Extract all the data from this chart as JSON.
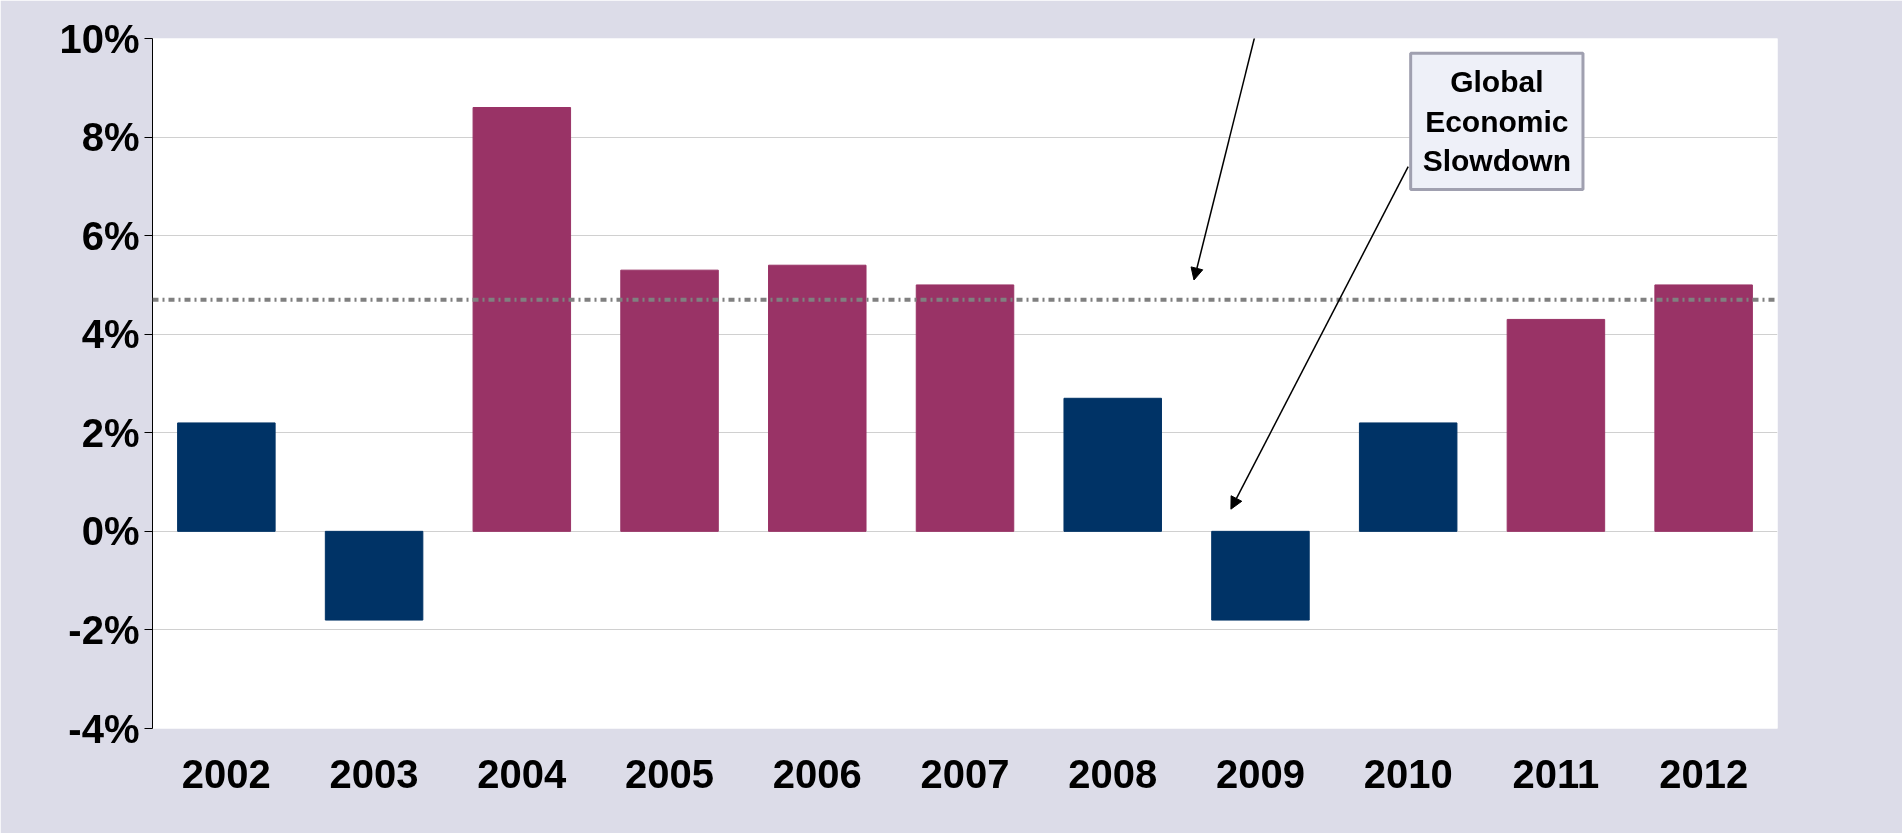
{
  "chart_data": {
    "type": "bar",
    "categories": [
      "2002",
      "2003",
      "2004",
      "2005",
      "2006",
      "2007",
      "2008",
      "2009",
      "2010",
      "2011",
      "2012"
    ],
    "values": [
      2.2,
      -1.8,
      8.6,
      5.3,
      5.4,
      5.0,
      2.7,
      -1.8,
      2.2,
      4.3,
      5.0
    ],
    "colors": [
      "#003366",
      "#003366",
      "#993366",
      "#993366",
      "#993366",
      "#993366",
      "#003366",
      "#003366",
      "#003366",
      "#993366",
      "#993366"
    ],
    "ylim": [
      -4,
      10
    ],
    "yticks": [
      {
        "value": -4,
        "label": "-4%"
      },
      {
        "value": -2,
        "label": "-2%"
      },
      {
        "value": 0,
        "label": "0%"
      },
      {
        "value": 2,
        "label": "2%"
      },
      {
        "value": 4,
        "label": "4%"
      },
      {
        "value": 6,
        "label": "6%"
      },
      {
        "value": 8,
        "label": "8%"
      },
      {
        "value": 10,
        "label": "10%"
      }
    ],
    "grid": "y",
    "ref_lines": [
      {
        "axis": "y",
        "value": 4.7,
        "color": "#808080",
        "line_style": "dashdot"
      }
    ],
    "annotations": [
      "Global Economic Slowdown"
    ]
  }
}
